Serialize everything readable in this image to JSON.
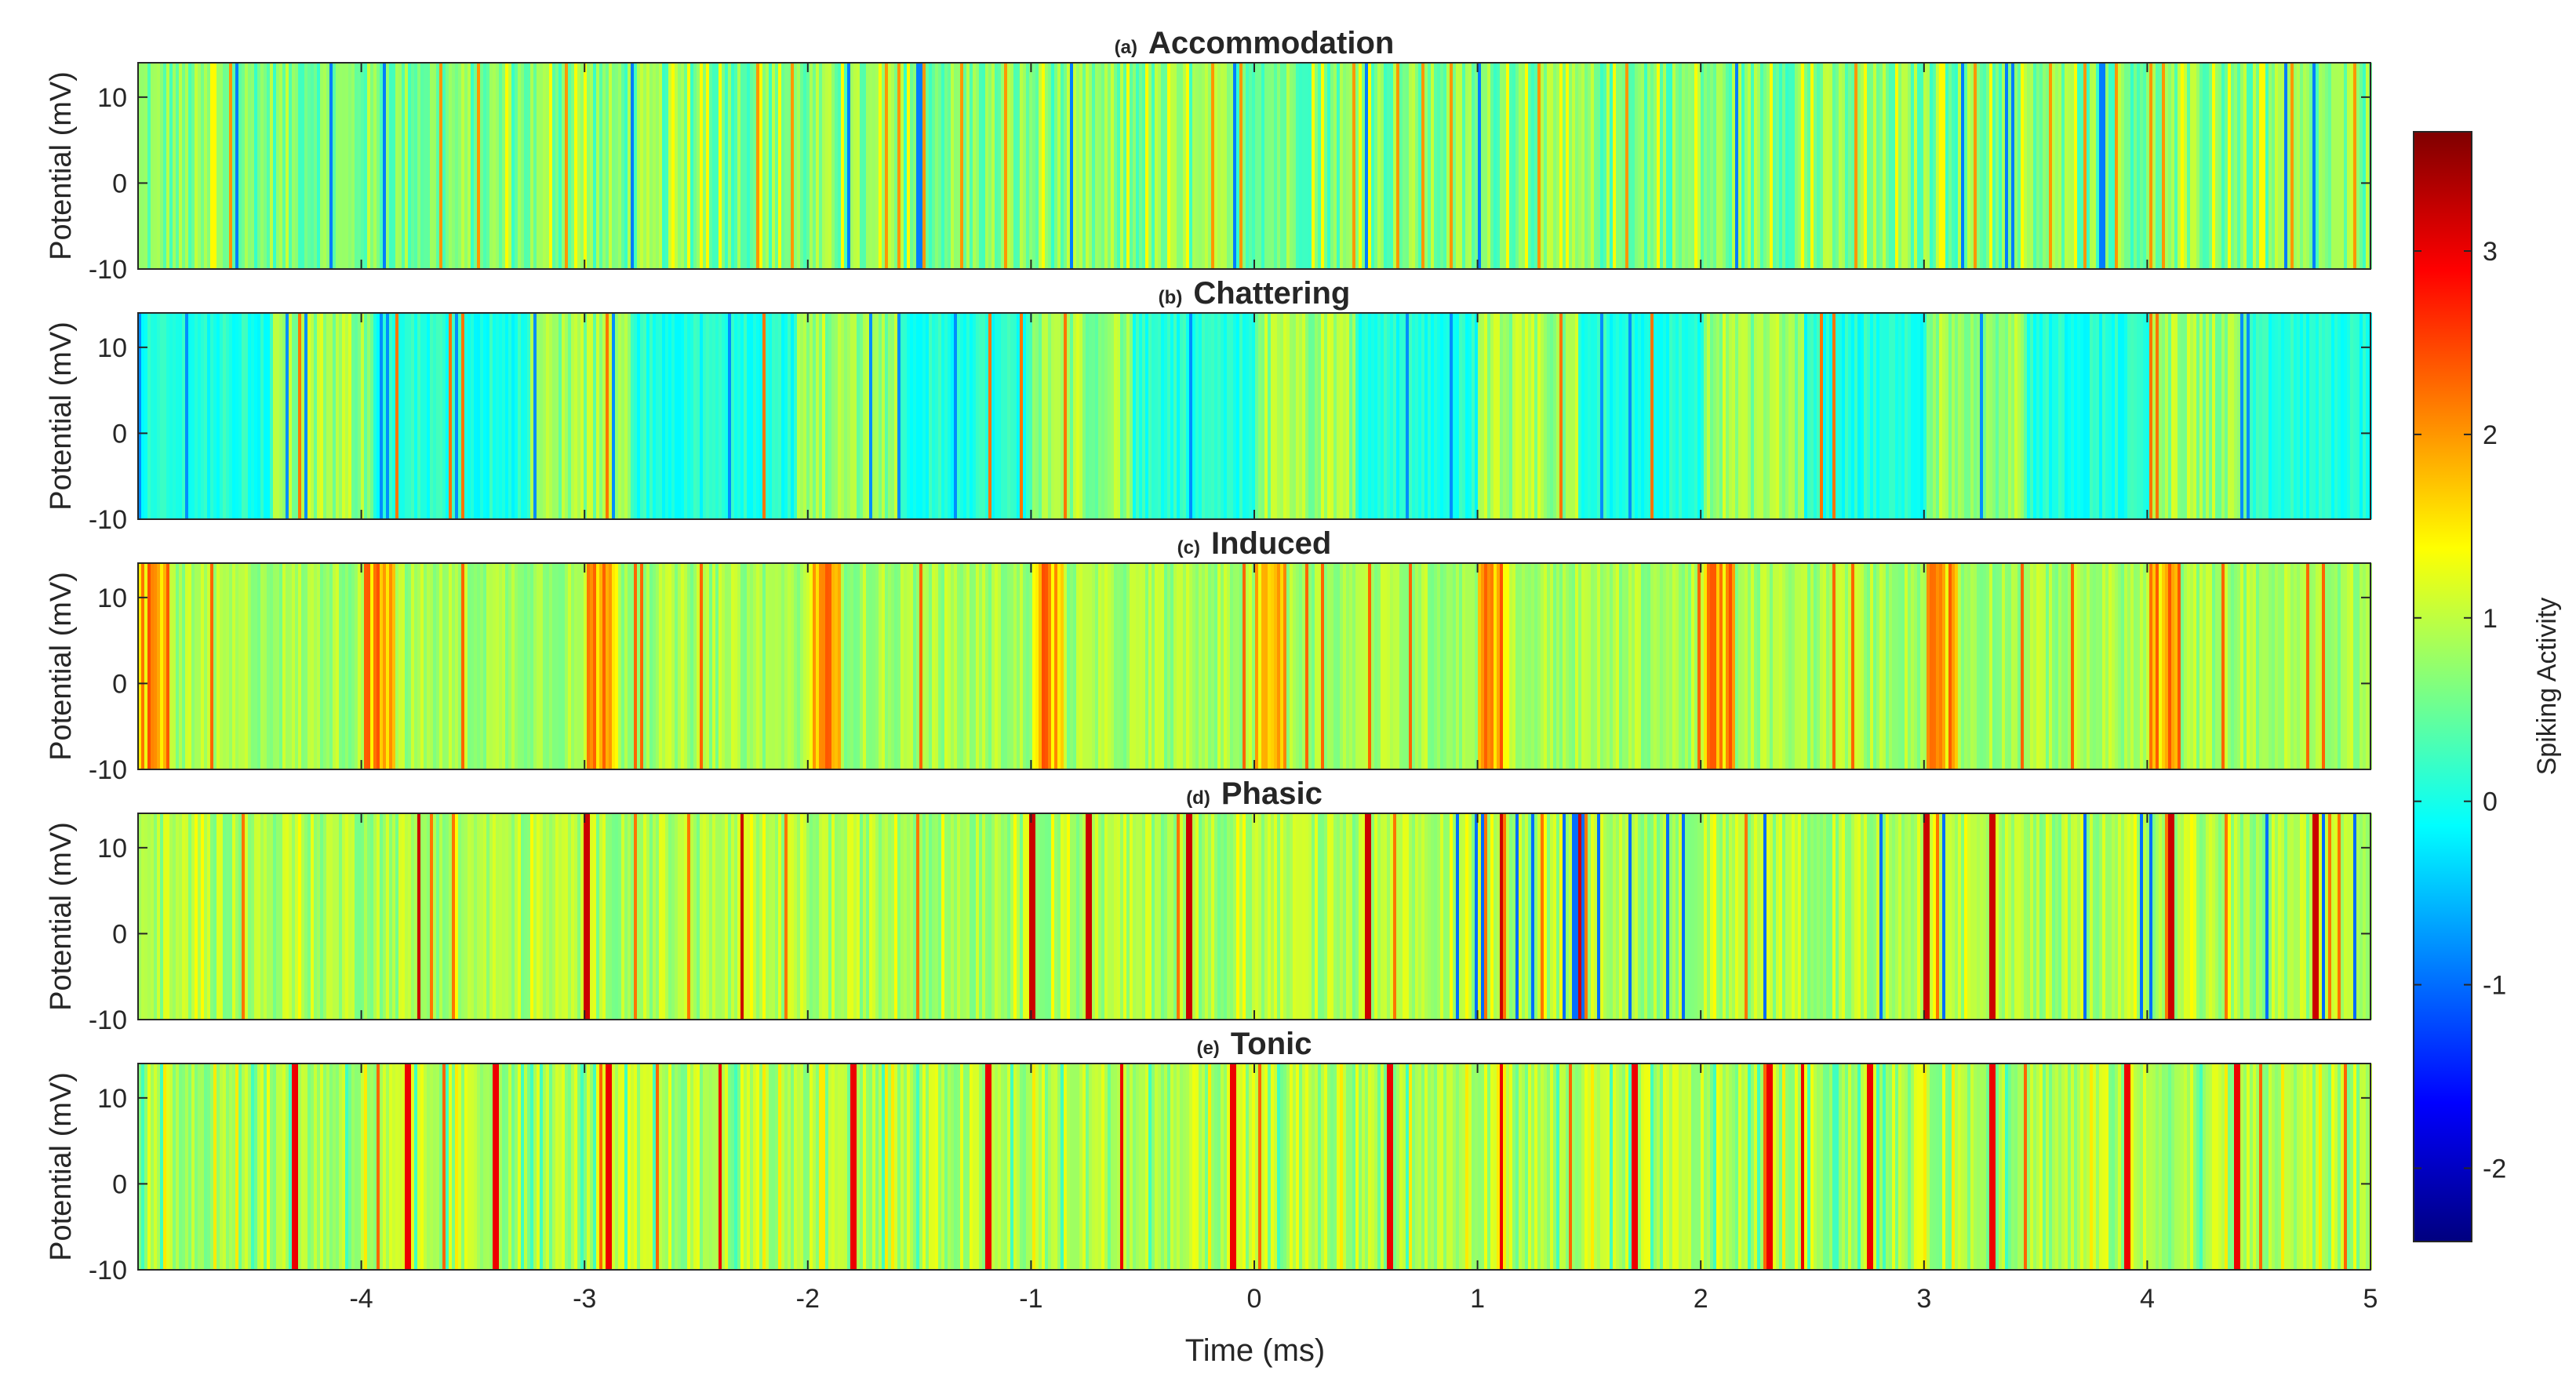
{
  "chart_data": {
    "type": "heatmap",
    "colormap": "jet",
    "xlim": [
      -5,
      5
    ],
    "ylim": [
      -10,
      14
    ],
    "xlabel": "Time (ms)",
    "ylabel": "Potential (mV)",
    "xticks": [
      -4,
      -3,
      -2,
      -1,
      0,
      1,
      2,
      3,
      4,
      5
    ],
    "yticks": [
      -10,
      0,
      10
    ],
    "colorbar": {
      "label": "Spiking Activity",
      "range": [
        -2.4,
        3.65
      ],
      "ticks": [
        -2,
        -1,
        0,
        1,
        2,
        3
      ]
    },
    "panels": [
      {
        "letter": "(a)",
        "name": "Accommodation",
        "pattern": "accommodation",
        "base": 0.62,
        "jitter": 0.45,
        "spikes": [],
        "burst_starts": [],
        "burst_len": 0
      },
      {
        "letter": "(b)",
        "name": "Chattering",
        "pattern": "chattering",
        "base": 0.25,
        "jitter": 0.5,
        "spikes": [],
        "burst_starts": [
          -4.4,
          -3.25,
          -2.05,
          -1.0,
          0.0,
          1.0,
          2.0,
          3.0,
          4.0
        ],
        "burst_len": 0.45
      },
      {
        "letter": "(c)",
        "name": "Induced",
        "pattern": "induced",
        "base": 0.85,
        "jitter": 0.3,
        "spikes": [],
        "burst_starts": [
          -5.0,
          -4.0,
          -3.0,
          -2.0,
          -1.0,
          0.0,
          1.0,
          2.0,
          3.0,
          4.0
        ],
        "burst_len": 0.14
      },
      {
        "letter": "(d)",
        "name": "Phasic",
        "pattern": "phasic",
        "base": 0.9,
        "jitter": 0.35,
        "spikes": [
          -3.75,
          -3.0,
          -2.3,
          -1.0,
          -0.75,
          -0.3,
          0.5,
          1.1,
          1.45,
          3.0,
          3.3,
          4.1,
          4.75
        ],
        "burst_starts": [],
        "burst_len": 0
      },
      {
        "letter": "(e)",
        "name": "Tonic",
        "pattern": "tonic",
        "base": 0.9,
        "jitter": 0.4,
        "spikes": [
          -4.3,
          -3.8,
          -3.4,
          -2.9,
          -2.4,
          -1.8,
          -1.2,
          -0.6,
          -0.1,
          0.6,
          1.1,
          1.7,
          2.3,
          2.45,
          2.75,
          3.3,
          3.9,
          4.4
        ],
        "burst_starts": [],
        "burst_len": 0
      }
    ]
  }
}
